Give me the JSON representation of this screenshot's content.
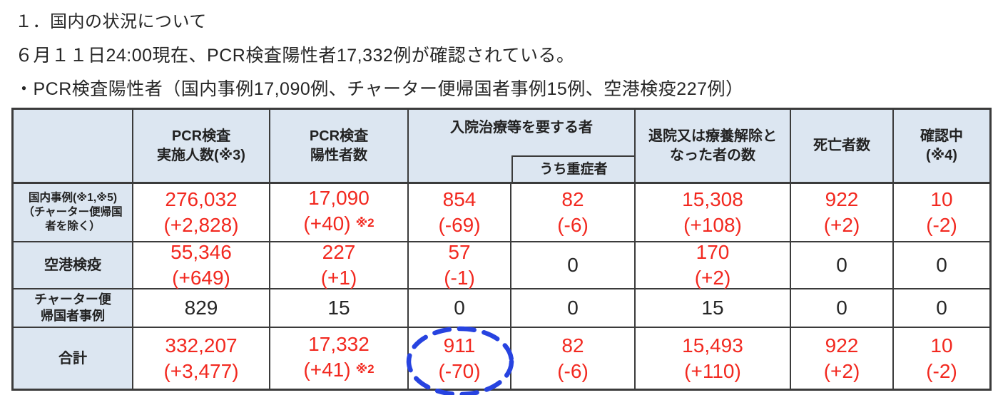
{
  "title": {
    "line1": "１．国内の状況について",
    "line2": "６月１１日24:00現在、PCR検査陽性者17,332例が確認されている。",
    "line3": "・PCR検査陽性者（国内事例17,090例、チャーター便帰国者事例15例、空港検疫227例）"
  },
  "colors": {
    "header_bg": "#dce6f1",
    "table_border": "#3b3b3b",
    "value_red": "#f2281f",
    "value_black": "#262626",
    "annotation_blue": "#2743e0"
  },
  "table": {
    "header": {
      "tested": "PCR検査\n実施人数(※3)",
      "positive": "PCR検査\n陽性者数",
      "hospital": "入院治療等を要する者",
      "severe": "うち重症者",
      "discharged": "退院又は療養解除と\nなった者の数",
      "deaths": "死亡者数",
      "pending": "確認中\n(※4)"
    },
    "rows": [
      {
        "label": "国内事例(※1,※5)\n（チャーター便帰国\n者を除く）",
        "cells": [
          {
            "value": "276,032",
            "delta": "(+2,828)",
            "color": "red"
          },
          {
            "value": "17,090",
            "delta": "(+40)",
            "note": "※2",
            "color": "red"
          },
          {
            "value": "854",
            "delta": "(-69)",
            "color": "red"
          },
          {
            "value": "82",
            "delta": "(-6)",
            "color": "red"
          },
          {
            "value": "15,308",
            "delta": "(+108)",
            "color": "red"
          },
          {
            "value": "922",
            "delta": "(+2)",
            "color": "red"
          },
          {
            "value": "10",
            "delta": "(-2)",
            "color": "red"
          }
        ]
      },
      {
        "label": "空港検疫",
        "cells": [
          {
            "value": "55,346",
            "delta": "(+649)",
            "color": "red"
          },
          {
            "value": "227",
            "delta": "(+1)",
            "color": "red"
          },
          {
            "value": "57",
            "delta": "(-1)",
            "color": "red"
          },
          {
            "value": "0",
            "color": "black"
          },
          {
            "value": "170",
            "delta": "(+2)",
            "color": "red"
          },
          {
            "value": "0",
            "color": "black"
          },
          {
            "value": "0",
            "color": "black"
          }
        ]
      },
      {
        "label": "チャーター便\n帰国者事例",
        "cells": [
          {
            "value": "829",
            "color": "black"
          },
          {
            "value": "15",
            "color": "black"
          },
          {
            "value": "0",
            "color": "black"
          },
          {
            "value": "0",
            "color": "black"
          },
          {
            "value": "15",
            "color": "black"
          },
          {
            "value": "0",
            "color": "black"
          },
          {
            "value": "0",
            "color": "black"
          }
        ]
      },
      {
        "label": "合計",
        "cells": [
          {
            "value": "332,207",
            "delta": "(+3,477)",
            "color": "red"
          },
          {
            "value": "17,332",
            "delta": "(+41)",
            "note": "※2",
            "color": "red"
          },
          {
            "value": "911",
            "delta": "(-70)",
            "color": "red",
            "circled": true
          },
          {
            "value": "82",
            "delta": "(-6)",
            "color": "red"
          },
          {
            "value": "15,493",
            "delta": "(+110)",
            "color": "red"
          },
          {
            "value": "922",
            "delta": "(+2)",
            "color": "red"
          },
          {
            "value": "10",
            "delta": "(-2)",
            "color": "red"
          }
        ]
      }
    ]
  },
  "annotation": {
    "type": "dashed-ellipse",
    "circled_value": "911 (-70)",
    "target": "合計 × 入院治療等を要する者",
    "color": "#2743e0"
  }
}
